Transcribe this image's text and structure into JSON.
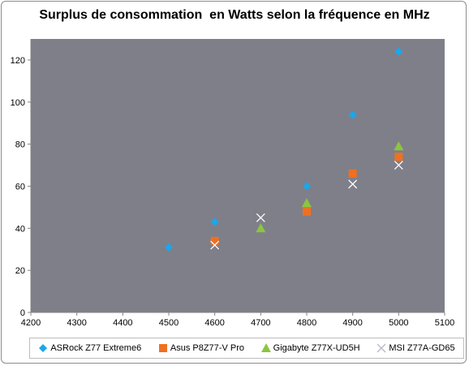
{
  "chart_data": {
    "type": "scatter",
    "title": "Surplus de consommation  en Watts selon la fréquence en MHz",
    "xlabel": "",
    "ylabel": "",
    "xlim": [
      4200,
      5100
    ],
    "ylim": [
      0,
      130
    ],
    "xticks": [
      4200,
      4300,
      4400,
      4500,
      4600,
      4700,
      4800,
      4900,
      5000,
      5100
    ],
    "yticks": [
      0,
      20,
      40,
      60,
      80,
      100,
      120
    ],
    "grid": false,
    "legend_position": "bottom",
    "plot_background": "#7f7f8a",
    "series": [
      {
        "name": "ASRock Z77 Extreme6",
        "marker": "diamond",
        "color": "#1aa7ec",
        "points": [
          [
            4500,
            31
          ],
          [
            4600,
            43
          ],
          [
            4800,
            60
          ],
          [
            4900,
            94
          ],
          [
            5000,
            124
          ]
        ]
      },
      {
        "name": "Asus P8Z77-V Pro",
        "marker": "square",
        "color": "#f07020",
        "points": [
          [
            4600,
            34
          ],
          [
            4800,
            48
          ],
          [
            4900,
            66
          ],
          [
            5000,
            74
          ]
        ]
      },
      {
        "name": "Gigabyte Z77X-UD5H",
        "marker": "triangle",
        "color": "#8cc63f",
        "points": [
          [
            4700,
            40
          ],
          [
            4800,
            52
          ],
          [
            5000,
            79
          ]
        ]
      },
      {
        "name": "MSI Z77A-GD65",
        "marker": "x",
        "color": "#ffffff",
        "points": [
          [
            4600,
            32
          ],
          [
            4700,
            45
          ],
          [
            4900,
            61
          ],
          [
            5000,
            70
          ]
        ]
      }
    ]
  }
}
